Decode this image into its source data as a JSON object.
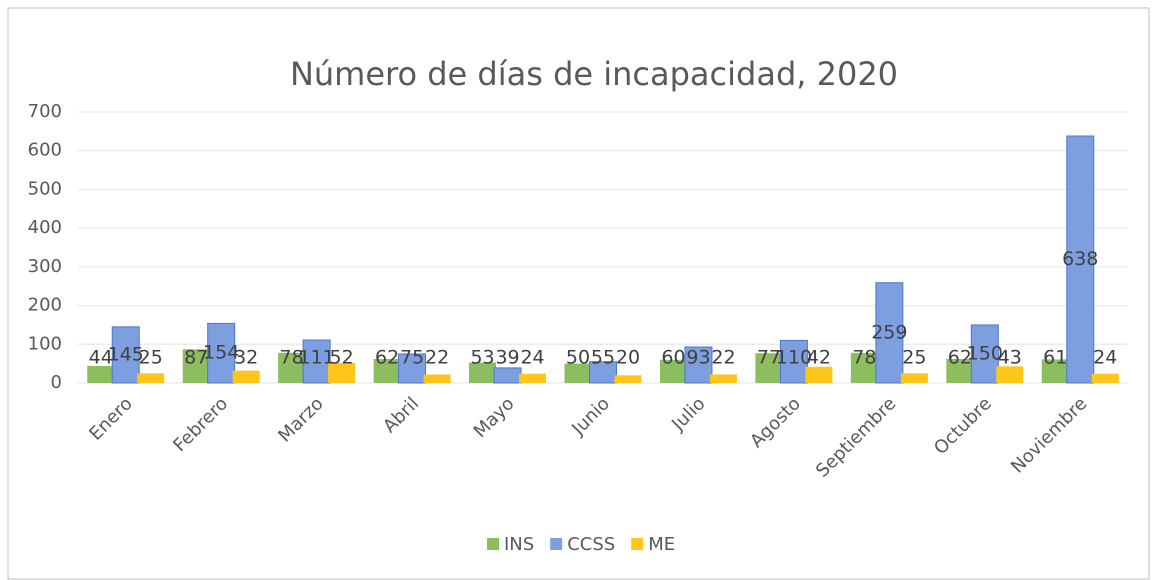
{
  "chart_data": {
    "type": "bar",
    "title": "Número de días de incapacidad, 2020",
    "categories": [
      "Enero",
      "Febrero",
      "Marzo",
      "Abril",
      "Mayo",
      "Junio",
      "Julio",
      "Agosto",
      "Septiembre",
      "Octubre",
      "Noviembre"
    ],
    "series": [
      {
        "name": "INS",
        "color": "#8cbd5e",
        "values": [
          44,
          87,
          78,
          62,
          53,
          50,
          60,
          77,
          78,
          62,
          61
        ]
      },
      {
        "name": "CCSS",
        "color": "#7d9fe0",
        "values": [
          145,
          154,
          111,
          75,
          39,
          55,
          93,
          110,
          259,
          150,
          638
        ]
      },
      {
        "name": "ME",
        "color": "#ffc61a",
        "values": [
          25,
          32,
          52,
          22,
          24,
          20,
          22,
          42,
          25,
          43,
          24
        ]
      }
    ],
    "ylim": [
      0,
      700
    ],
    "yticks": [
      0,
      100,
      200,
      300,
      400,
      500,
      600,
      700
    ],
    "grid": true,
    "legend": "bottom"
  }
}
